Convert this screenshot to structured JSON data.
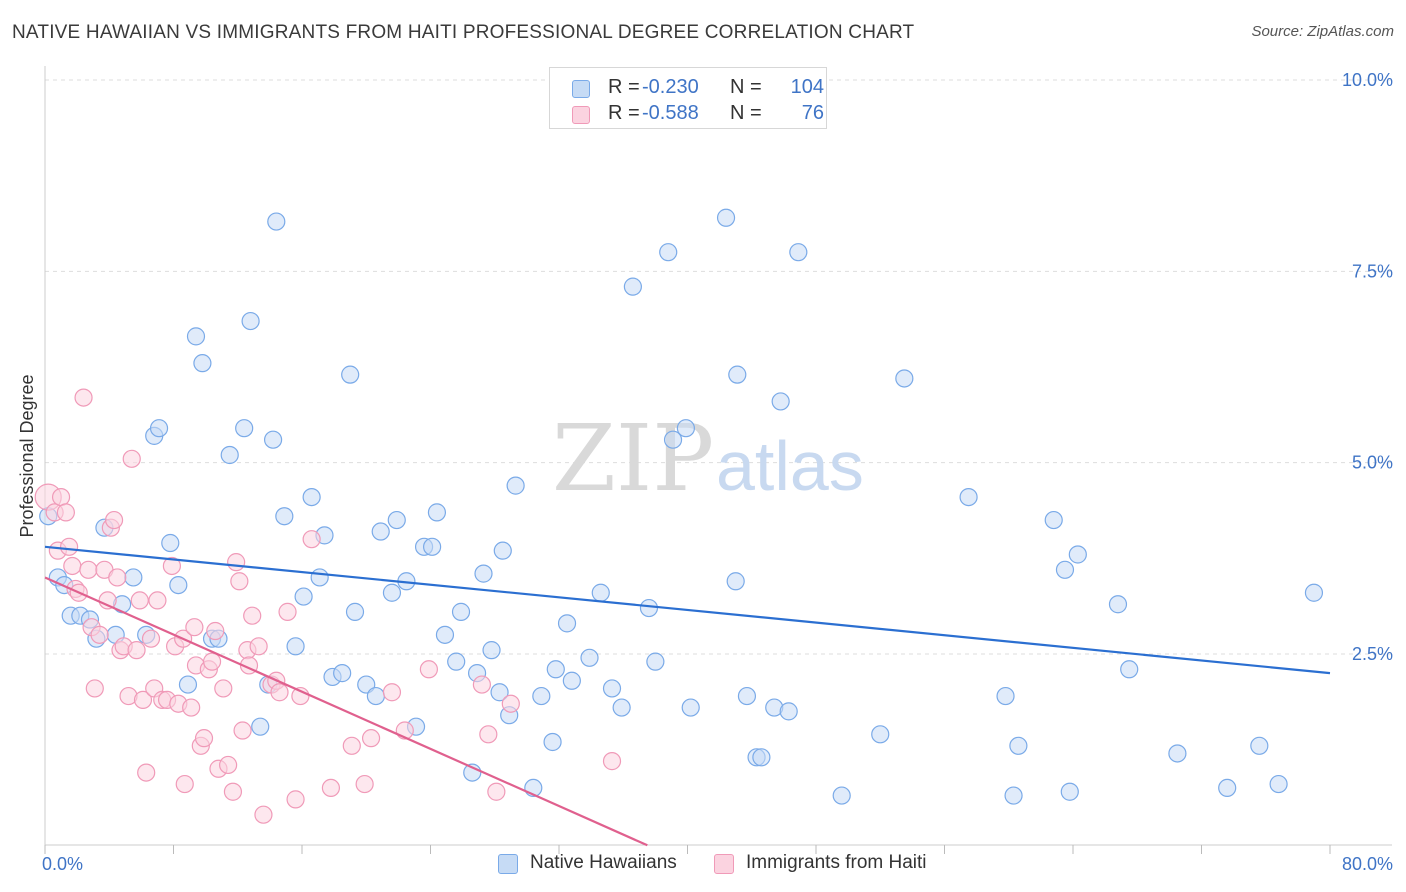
{
  "title": "NATIVE HAWAIIAN VS IMMIGRANTS FROM HAITI PROFESSIONAL DEGREE CORRELATION CHART",
  "source": "Source: ZipAtlas.com",
  "watermark": {
    "zip": "ZIP",
    "atlas": "atlas"
  },
  "stats": [
    {
      "r_label": "R =",
      "r_value": "-0.230",
      "n_label": "N =",
      "n_value": "104",
      "color": "#7aaae8",
      "fill": "#c6dbf5"
    },
    {
      "r_label": "R =",
      "r_value": "-0.588",
      "n_label": "N =",
      "n_value": "76",
      "color": "#f09ab8",
      "fill": "#fbd3e0"
    }
  ],
  "legend": [
    {
      "label": "Native Hawaiians",
      "color": "#7aaae8",
      "fill": "#c6dbf5"
    },
    {
      "label": "Immigrants from Haiti",
      "color": "#f09ab8",
      "fill": "#fbd3e0"
    }
  ],
  "chart_data": {
    "type": "scatter",
    "title": "NATIVE HAWAIIAN VS IMMIGRANTS FROM HAITI PROFESSIONAL DEGREE CORRELATION CHART",
    "xlabel": "",
    "ylabel": "Professional Degree",
    "xlim": [
      0,
      80
    ],
    "ylim": [
      0,
      10.5
    ],
    "x_tick_labels": [
      "0.0%",
      "80.0%"
    ],
    "y_ticks": [
      2.5,
      5.0,
      7.5,
      10.0
    ],
    "y_tick_labels": [
      "2.5%",
      "5.0%",
      "7.5%",
      "10.0%"
    ],
    "grid": true,
    "legend_position": "bottom",
    "series": [
      {
        "name": "Native Hawaiians",
        "color": "#7aaae8",
        "fill": "#c6dbf5",
        "trend_color": "#2b6fd1",
        "trend": {
          "x": [
            0,
            80
          ],
          "y": [
            3.9,
            2.25
          ]
        },
        "points": [
          [
            0.2,
            4.3
          ],
          [
            0.8,
            3.5
          ],
          [
            1.2,
            3.4
          ],
          [
            1.6,
            3.0
          ],
          [
            2.2,
            3.0
          ],
          [
            2.8,
            2.95
          ],
          [
            3.2,
            2.7
          ],
          [
            3.7,
            4.15
          ],
          [
            4.4,
            2.75
          ],
          [
            4.8,
            3.15
          ],
          [
            5.5,
            3.5
          ],
          [
            6.3,
            2.75
          ],
          [
            6.8,
            5.35
          ],
          [
            7.1,
            5.45
          ],
          [
            7.8,
            3.95
          ],
          [
            8.3,
            3.4
          ],
          [
            8.9,
            2.1
          ],
          [
            9.4,
            6.65
          ],
          [
            9.8,
            6.3
          ],
          [
            10.4,
            2.7
          ],
          [
            10.8,
            2.7
          ],
          [
            11.5,
            5.1
          ],
          [
            12.4,
            5.45
          ],
          [
            12.8,
            6.85
          ],
          [
            13.4,
            1.55
          ],
          [
            13.9,
            2.1
          ],
          [
            14.4,
            8.15
          ],
          [
            14.9,
            4.3
          ],
          [
            15.6,
            2.6
          ],
          [
            16.1,
            3.25
          ],
          [
            16.6,
            4.55
          ],
          [
            17.1,
            3.5
          ],
          [
            17.4,
            4.05
          ],
          [
            17.9,
            2.2
          ],
          [
            18.5,
            2.25
          ],
          [
            19.0,
            6.15
          ],
          [
            19.3,
            3.05
          ],
          [
            20.0,
            2.1
          ],
          [
            20.6,
            1.95
          ],
          [
            20.9,
            4.1
          ],
          [
            21.6,
            3.3
          ],
          [
            21.9,
            4.25
          ],
          [
            22.5,
            3.45
          ],
          [
            23.1,
            1.55
          ],
          [
            23.6,
            3.9
          ],
          [
            24.1,
            3.9
          ],
          [
            24.4,
            4.35
          ],
          [
            24.9,
            2.75
          ],
          [
            25.6,
            2.4
          ],
          [
            25.9,
            3.05
          ],
          [
            26.6,
            0.95
          ],
          [
            26.9,
            2.25
          ],
          [
            27.3,
            3.55
          ],
          [
            27.8,
            2.55
          ],
          [
            28.3,
            2.0
          ],
          [
            28.5,
            3.85
          ],
          [
            28.9,
            1.7
          ],
          [
            29.3,
            4.7
          ],
          [
            30.4,
            0.75
          ],
          [
            30.9,
            1.95
          ],
          [
            31.6,
            1.35
          ],
          [
            31.8,
            2.3
          ],
          [
            32.5,
            2.9
          ],
          [
            32.8,
            2.15
          ],
          [
            33.9,
            2.45
          ],
          [
            34.6,
            3.3
          ],
          [
            35.3,
            2.05
          ],
          [
            35.9,
            1.8
          ],
          [
            36.6,
            7.3
          ],
          [
            37.6,
            3.1
          ],
          [
            38.0,
            2.4
          ],
          [
            38.8,
            7.75
          ],
          [
            39.1,
            5.3
          ],
          [
            39.9,
            5.45
          ],
          [
            40.2,
            1.8
          ],
          [
            42.4,
            8.2
          ],
          [
            43.0,
            3.45
          ],
          [
            43.1,
            6.15
          ],
          [
            43.7,
            1.95
          ],
          [
            44.3,
            1.15
          ],
          [
            44.6,
            1.15
          ],
          [
            45.4,
            1.8
          ],
          [
            45.8,
            5.8
          ],
          [
            46.3,
            1.75
          ],
          [
            46.9,
            7.75
          ],
          [
            49.6,
            0.65
          ],
          [
            52.0,
            1.45
          ],
          [
            53.5,
            6.1
          ],
          [
            57.5,
            4.55
          ],
          [
            59.8,
            1.95
          ],
          [
            60.3,
            0.65
          ],
          [
            60.6,
            1.3
          ],
          [
            62.8,
            4.25
          ],
          [
            63.5,
            3.6
          ],
          [
            63.8,
            0.7
          ],
          [
            64.3,
            3.8
          ],
          [
            66.8,
            3.15
          ],
          [
            67.5,
            2.3
          ],
          [
            70.5,
            1.2
          ],
          [
            73.6,
            0.75
          ],
          [
            75.6,
            1.3
          ],
          [
            76.8,
            0.8
          ],
          [
            79.0,
            3.3
          ],
          [
            14.2,
            5.3
          ]
        ]
      },
      {
        "name": "Immigrants from Haiti",
        "color": "#f09ab8",
        "fill": "#fbd3e0",
        "trend_color": "#e0608e",
        "trend": {
          "x": [
            0,
            37.5
          ],
          "y": [
            3.5,
            0.0
          ]
        },
        "points": [
          [
            0.2,
            4.55
          ],
          [
            0.6,
            4.35
          ],
          [
            0.8,
            3.85
          ],
          [
            1.0,
            4.55
          ],
          [
            1.3,
            4.35
          ],
          [
            1.5,
            3.9
          ],
          [
            1.7,
            3.65
          ],
          [
            1.9,
            3.35
          ],
          [
            2.1,
            3.3
          ],
          [
            2.4,
            5.85
          ],
          [
            2.7,
            3.6
          ],
          [
            2.9,
            2.85
          ],
          [
            3.1,
            2.05
          ],
          [
            3.4,
            2.75
          ],
          [
            3.7,
            3.6
          ],
          [
            3.9,
            3.2
          ],
          [
            4.1,
            4.15
          ],
          [
            4.3,
            4.25
          ],
          [
            4.5,
            3.5
          ],
          [
            4.7,
            2.55
          ],
          [
            4.9,
            2.6
          ],
          [
            5.2,
            1.95
          ],
          [
            5.4,
            5.05
          ],
          [
            5.7,
            2.55
          ],
          [
            5.9,
            3.2
          ],
          [
            6.1,
            1.9
          ],
          [
            6.3,
            0.95
          ],
          [
            6.6,
            2.7
          ],
          [
            6.8,
            2.05
          ],
          [
            7.0,
            3.2
          ],
          [
            7.3,
            1.9
          ],
          [
            7.6,
            1.9
          ],
          [
            7.9,
            3.65
          ],
          [
            8.1,
            2.6
          ],
          [
            8.3,
            1.85
          ],
          [
            8.6,
            2.7
          ],
          [
            8.7,
            0.8
          ],
          [
            9.1,
            1.8
          ],
          [
            9.3,
            2.85
          ],
          [
            9.4,
            2.35
          ],
          [
            9.7,
            1.3
          ],
          [
            9.9,
            1.4
          ],
          [
            10.2,
            2.3
          ],
          [
            10.4,
            2.4
          ],
          [
            10.6,
            2.8
          ],
          [
            10.8,
            1.0
          ],
          [
            11.1,
            2.05
          ],
          [
            11.4,
            1.05
          ],
          [
            11.7,
            0.7
          ],
          [
            11.9,
            3.7
          ],
          [
            12.1,
            3.45
          ],
          [
            12.3,
            1.5
          ],
          [
            12.6,
            2.55
          ],
          [
            12.7,
            2.35
          ],
          [
            12.9,
            3.0
          ],
          [
            13.3,
            2.6
          ],
          [
            13.6,
            0.4
          ],
          [
            14.1,
            2.1
          ],
          [
            14.4,
            2.15
          ],
          [
            14.6,
            2.0
          ],
          [
            15.1,
            3.05
          ],
          [
            15.6,
            0.6
          ],
          [
            15.9,
            1.95
          ],
          [
            16.6,
            4.0
          ],
          [
            17.8,
            0.75
          ],
          [
            19.1,
            1.3
          ],
          [
            19.9,
            0.8
          ],
          [
            20.3,
            1.4
          ],
          [
            21.6,
            2.0
          ],
          [
            22.4,
            1.5
          ],
          [
            23.9,
            2.3
          ],
          [
            27.2,
            2.1
          ],
          [
            27.6,
            1.45
          ],
          [
            28.1,
            0.7
          ],
          [
            29.0,
            1.85
          ],
          [
            35.3,
            1.1
          ]
        ]
      }
    ]
  }
}
